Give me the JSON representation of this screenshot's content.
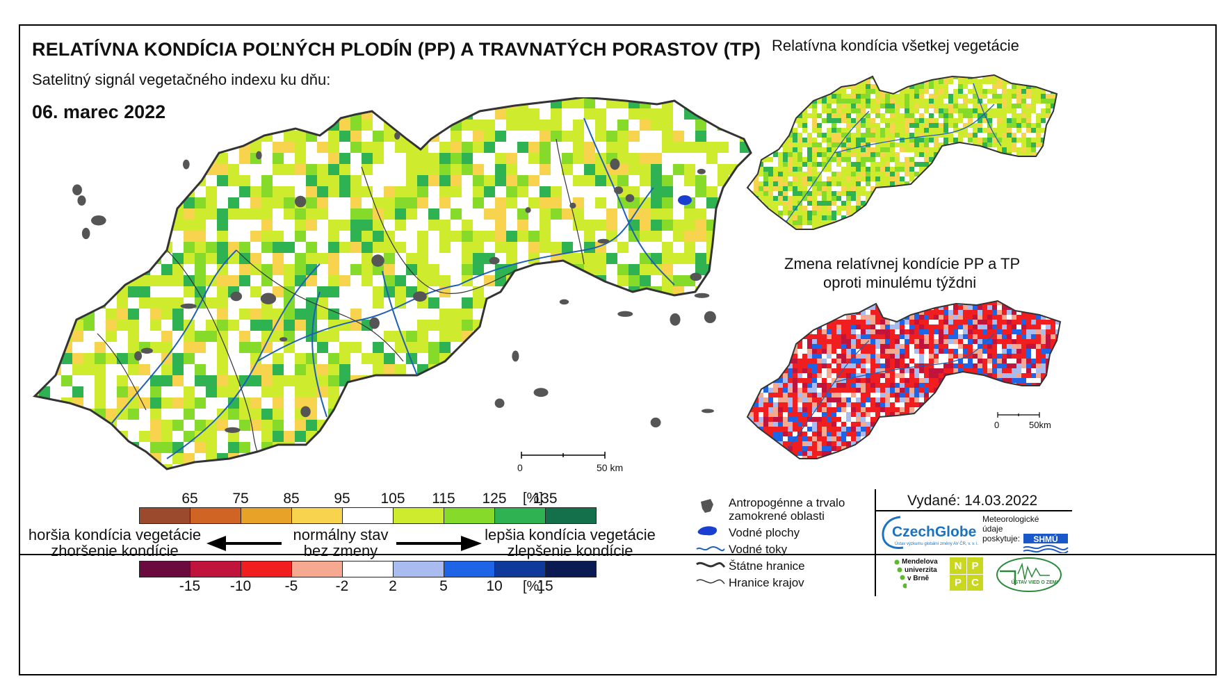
{
  "header": {
    "title": "RELATÍVNA KONDÍCIA POĽNÝCH PLODÍN (PP) A TRAVNATÝCH PORASTOV (TP)",
    "subtitle": "Satelitný signál vegetačného indexu ku dňu:",
    "date": "06. marec 2022"
  },
  "side_maps": {
    "top_title": "Relatívna kondícia všetkej vegetácie",
    "bottom_title_line1": "Zmena relatívnej kondície PP a TP",
    "bottom_title_line2": "oproti minulému týždni"
  },
  "scale_bars": {
    "main": {
      "start": "0",
      "end": "50 km"
    },
    "inset": {
      "start": "0",
      "end": "50km"
    }
  },
  "legend": {
    "condition_scale": {
      "colors": [
        "#9b4a2e",
        "#cf6424",
        "#e8a227",
        "#f7d34e",
        "#ffffff",
        "#cfeb2e",
        "#86db2a",
        "#2fb352",
        "#13704a"
      ],
      "ticks": [
        "65",
        "75",
        "85",
        "95",
        "105",
        "115",
        "125",
        "135"
      ],
      "unit": "[%]"
    },
    "change_scale": {
      "colors": [
        "#6a0a3e",
        "#c0143c",
        "#f01e1e",
        "#f7a890",
        "#ffffff",
        "#a9bcf0",
        "#1e64e6",
        "#0f3a9c",
        "#0a1a52"
      ],
      "ticks": [
        "-15",
        "-10",
        "-5",
        "-2",
        "2",
        "5",
        "10",
        "15"
      ],
      "unit": "[%]"
    },
    "left_line1": "horšia kondícia vegetácie",
    "left_line2": "zhoršenie kondície",
    "center_line1": "normálny stav",
    "center_line2": "bez zmeny",
    "right_line1": "lepšia kondícia vegetácie",
    "right_line2": "zlepšenie kondície",
    "symbols": [
      {
        "icon": "urban-area-icon",
        "label_line1": "Antropogénne a trvalo",
        "label_line2": "zamokrené oblasti"
      },
      {
        "icon": "water-body-icon",
        "label_line1": "Vodné plochy",
        "label_line2": ""
      },
      {
        "icon": "river-icon",
        "label_line1": "Vodné toky",
        "label_line2": ""
      },
      {
        "icon": "state-border-icon",
        "label_line1": "Štátne hranice",
        "label_line2": ""
      },
      {
        "icon": "region-border-icon",
        "label_line1": "Hranice krajov",
        "label_line2": ""
      }
    ]
  },
  "publisher": {
    "issued": "Vydané: 14.03.2022",
    "czechglobe": "CzechGlobe",
    "czechglobe_sub": "Ústav výzkumu globální změny AV ČR, v. v. i.",
    "meteo_line1": "Meteorologické",
    "meteo_line2": "údaje",
    "meteo_line3": "poskytuje:",
    "shmu": "SHMÚ",
    "mendel_line1": "Mendelova",
    "mendel_line2": "univerzita",
    "mendel_line3": "v Brně",
    "nppc_letters": [
      "N",
      "P",
      "P",
      "C"
    ],
    "uvz": "ÚSTAV VIED O ZEMI"
  },
  "map_colors": {
    "main": [
      "#ffffff",
      "#ffffff",
      "#cfeb2e",
      "#cfeb2e",
      "#86db2a",
      "#2fb352",
      "#f7d34e",
      "#ffffff",
      "#cfeb2e"
    ],
    "top_inset": [
      "#cfeb2e",
      "#cfeb2e",
      "#86db2a",
      "#2fb352",
      "#ffffff",
      "#cfeb2e",
      "#f7d34e"
    ],
    "bottom_inset": [
      "#f01e1e",
      "#c0143c",
      "#f7a890",
      "#ffffff",
      "#f01e1e",
      "#a9bcf0",
      "#1e64e6",
      "#f01e1e"
    ],
    "urban": "#555555",
    "river": "#1f5fb5",
    "border": "#333333"
  }
}
